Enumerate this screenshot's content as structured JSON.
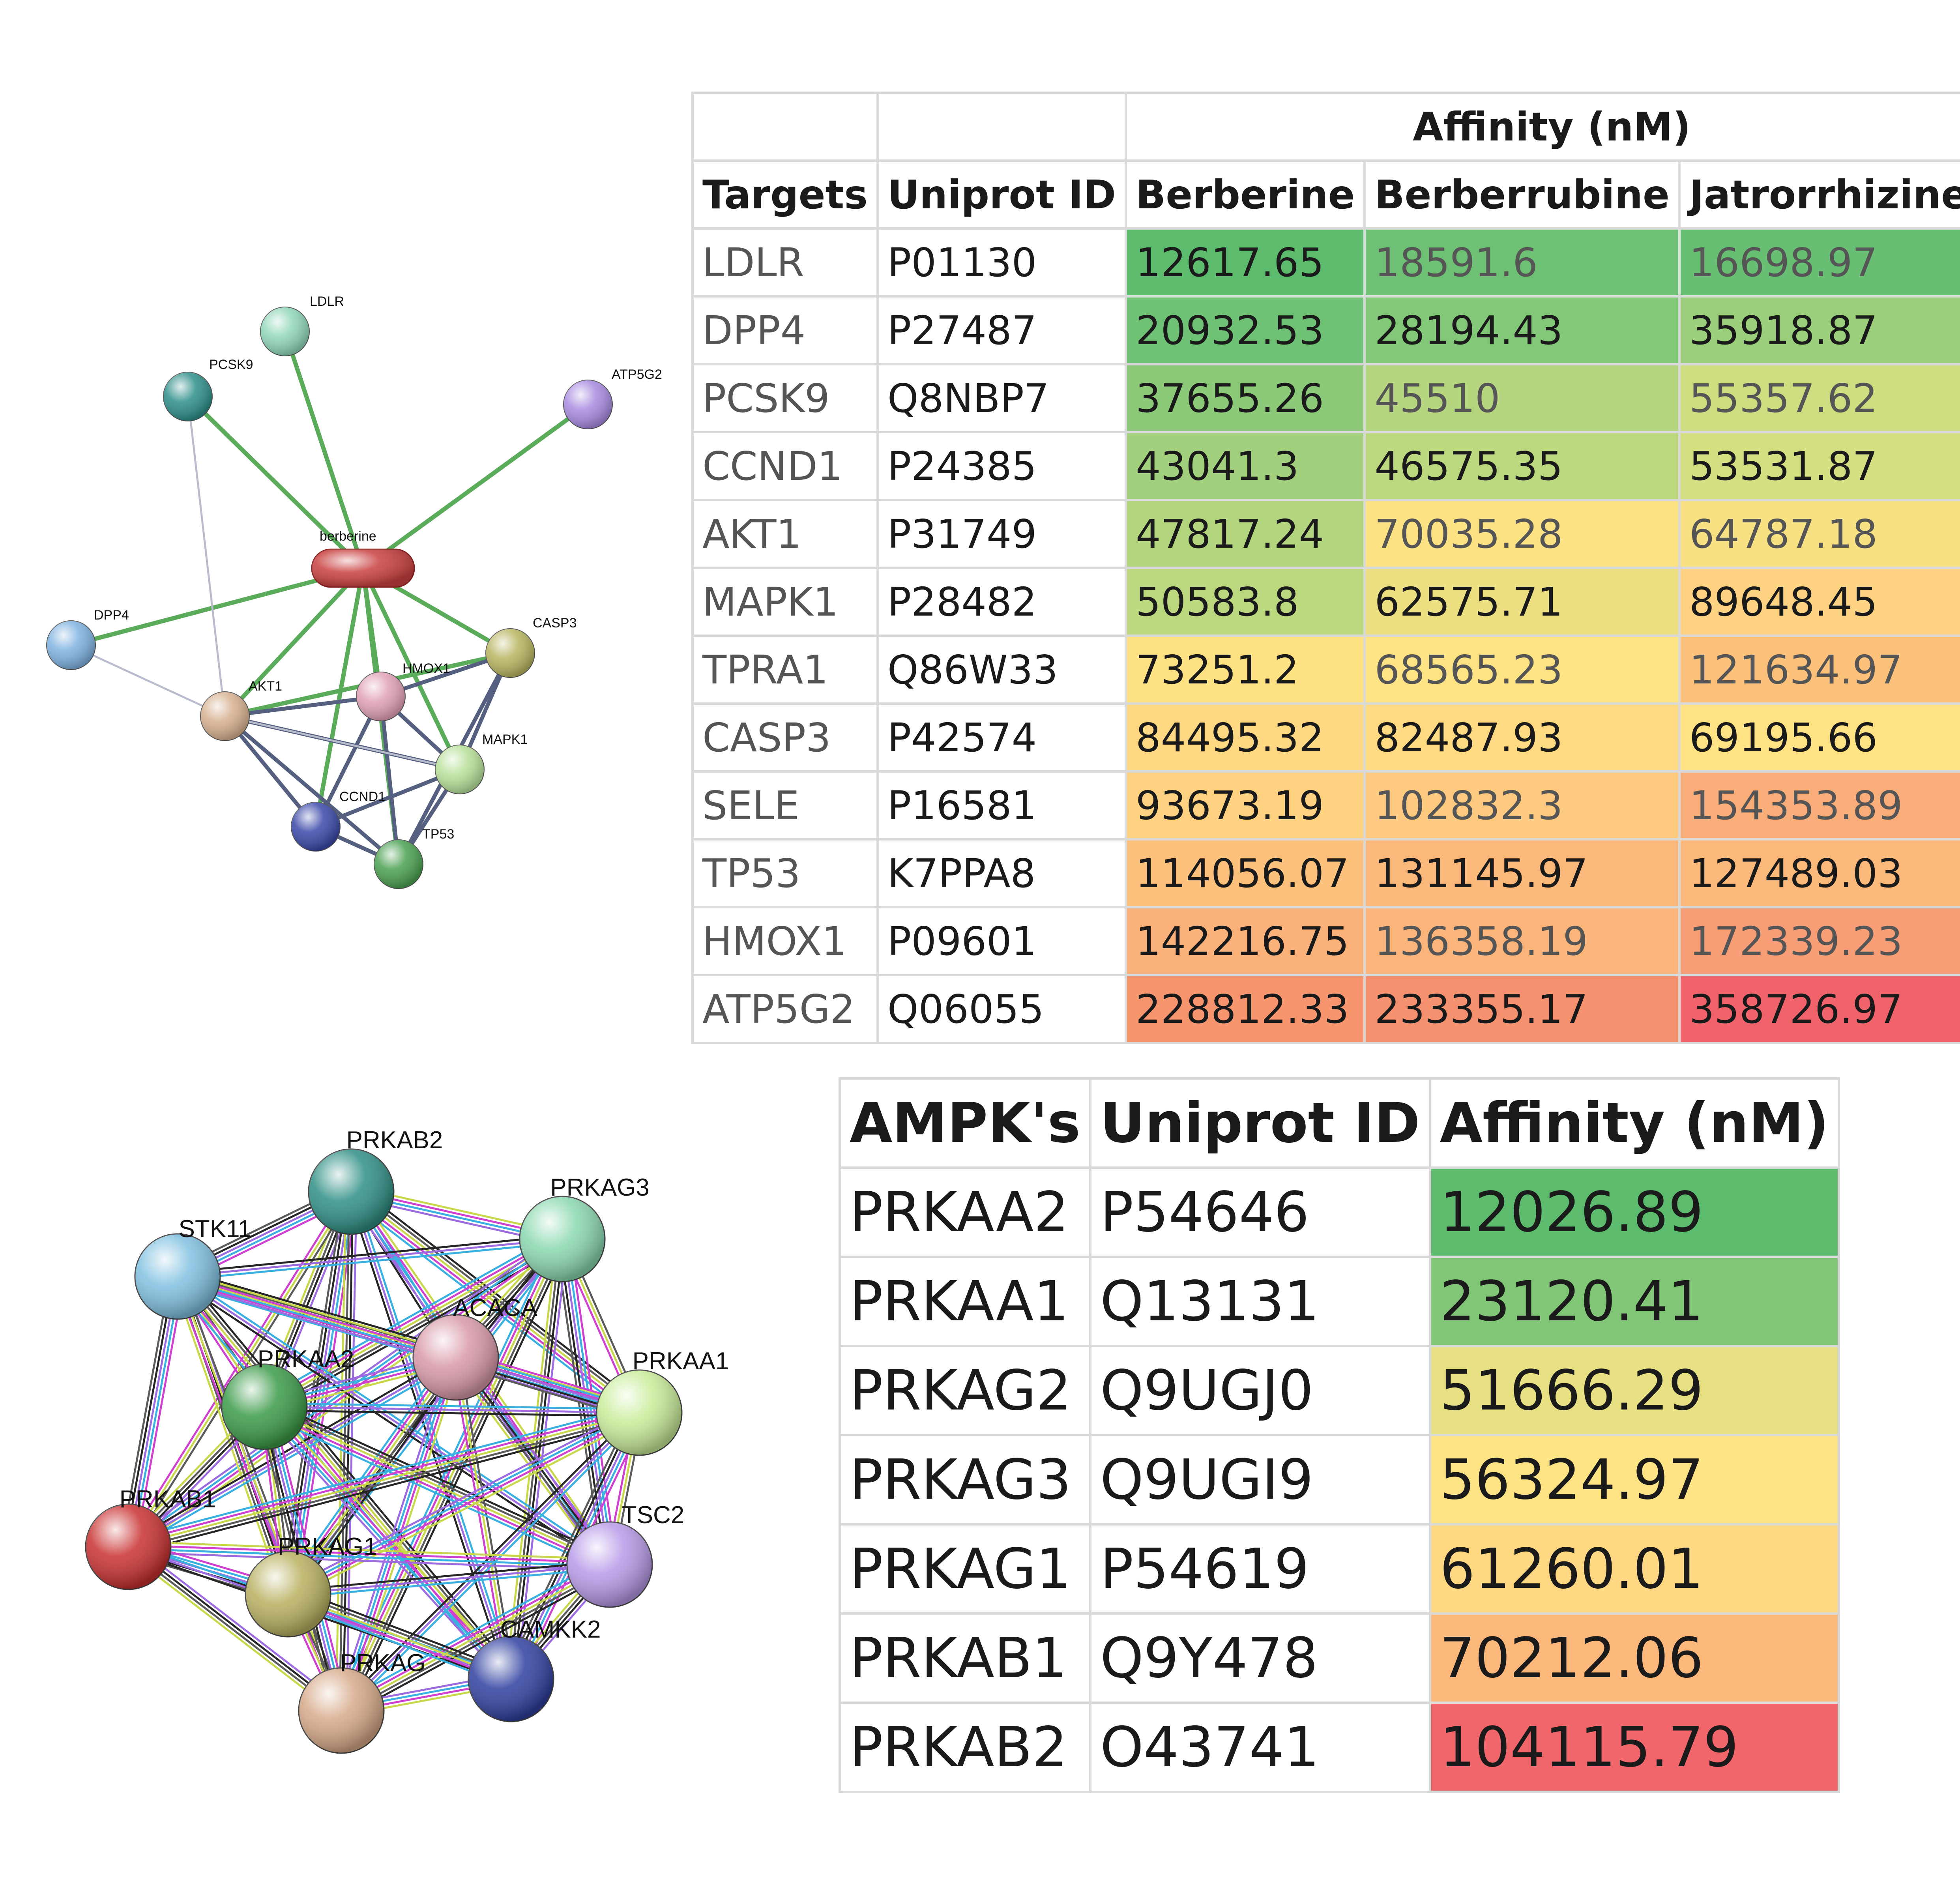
{
  "network1": {
    "nodes": [
      {
        "id": "berberine",
        "label": "berberine",
        "color": "#c94040"
      },
      {
        "id": "LDLR",
        "label": "LDLR",
        "color": "#8fd6b8"
      },
      {
        "id": "PCSK9",
        "label": "PCSK9",
        "color": "#2e8f8a"
      },
      {
        "id": "ATP5G2",
        "label": "ATP5G2",
        "color": "#a88be0"
      },
      {
        "id": "DPP4",
        "label": "DPP4",
        "color": "#7fb2e0"
      },
      {
        "id": "CASP3",
        "label": "CASP3",
        "color": "#b8b560"
      },
      {
        "id": "AKT1",
        "label": "AKT1",
        "color": "#d6b090"
      },
      {
        "id": "HMOX1",
        "label": "HMOX1",
        "color": "#e0a0b8"
      },
      {
        "id": "MAPK1",
        "label": "MAPK1",
        "color": "#b8e09a"
      },
      {
        "id": "CCND1",
        "label": "CCND1",
        "color": "#3a48a8"
      },
      {
        "id": "TP53",
        "label": "TP53",
        "color": "#4aa050"
      }
    ]
  },
  "table1": {
    "group_header": "Affinity (nM)",
    "columns": [
      "Targets",
      "Uniprot ID",
      "Berberine",
      "Berberrubine",
      "Jatrorrhizine"
    ],
    "rows": [
      {
        "target": "LDLR",
        "id": "P01130",
        "v": [
          "12617.65",
          "18591.6",
          "16698.97"
        ],
        "c": [
          "#5dbb6e",
          "#6ec074",
          "#68be72"
        ]
      },
      {
        "target": "DPP4",
        "id": "P27487",
        "v": [
          "20932.53",
          "28194.43",
          "35918.87"
        ],
        "c": [
          "#6fc175",
          "#83c879",
          "#9bcf7c"
        ]
      },
      {
        "target": "PCSK9",
        "id": "Q8NBP7",
        "v": [
          "37655.26",
          "45510",
          "55357.62"
        ],
        "c": [
          "#8cca79",
          "#b5d67e",
          "#cfdc80"
        ]
      },
      {
        "target": "CCND1",
        "id": "P24385",
        "v": [
          "43041.3",
          "46575.35",
          "53531.87"
        ],
        "c": [
          "#a2d07c",
          "#bcd87f",
          "#d5de81"
        ]
      },
      {
        "target": "AKT1",
        "id": "P31749",
        "v": [
          "47817.24",
          "70035.28",
          "64787.18"
        ],
        "c": [
          "#b2d57d",
          "#fde283",
          "#f7e183"
        ]
      },
      {
        "target": "MAPK1",
        "id": "P28482",
        "v": [
          "50583.8",
          "62575.71",
          "89648.45"
        ],
        "c": [
          "#bbd87e",
          "#ecdf82",
          "#fdd281"
        ]
      },
      {
        "target": "TPRA1",
        "id": "Q86W33",
        "v": [
          "73251.2",
          "68565.23",
          "121634.97"
        ],
        "c": [
          "#fee183",
          "#fde383",
          "#fcc27c"
        ]
      },
      {
        "target": "CASP3",
        "id": "P42574",
        "v": [
          "84495.32",
          "82487.93",
          "69195.66"
        ],
        "c": [
          "#fed882",
          "#fedb82",
          "#fee283"
        ]
      },
      {
        "target": "SELE",
        "id": "P16581",
        "v": [
          "93673.19",
          "102832.3",
          "154353.89"
        ],
        "c": [
          "#fed281",
          "#fdca7f",
          "#f9ae79"
        ]
      },
      {
        "target": "TP53",
        "id": "K7PPA8",
        "v": [
          "114056.07",
          "131145.97",
          "127489.03"
        ],
        "c": [
          "#fcc27d",
          "#fbb87b",
          "#fbba7b"
        ]
      },
      {
        "target": "HMOX1",
        "id": "P09601",
        "v": [
          "142216.75",
          "136358.19",
          "172339.23"
        ],
        "c": [
          "#fab27a",
          "#fbb57a",
          "#f89e76"
        ]
      },
      {
        "target": "ATP5G2",
        "id": "Q06055",
        "v": [
          "228812.33",
          "233355.17",
          "358726.97"
        ],
        "c": [
          "#f7956f",
          "#f6916f",
          "#f0636a"
        ]
      }
    ]
  },
  "network2": {
    "nodes": [
      {
        "id": "PRKAB2",
        "label": "PRKAB2",
        "color": "#2e8f85"
      },
      {
        "id": "PRKAG3",
        "label": "PRKAG3",
        "color": "#8ad8b0"
      },
      {
        "id": "STK11",
        "label": "STK11",
        "color": "#7fc0e0"
      },
      {
        "id": "ACACA",
        "label": "ACACA",
        "color": "#d898a8"
      },
      {
        "id": "PRKAA2",
        "label": "PRKAA2",
        "color": "#3a9a48"
      },
      {
        "id": "PRKAA1",
        "label": "PRKAA1",
        "color": "#c8ec98"
      },
      {
        "id": "PRKAB1",
        "label": "PRKAB1",
        "color": "#c93030"
      },
      {
        "id": "TSC2",
        "label": "TSC2",
        "color": "#b89ae8"
      },
      {
        "id": "PRKAG1",
        "label": "PRKAG1",
        "color": "#b8b060"
      },
      {
        "id": "CAMKK2",
        "label": "CAMKK2",
        "color": "#3040a0"
      },
      {
        "id": "PRKAG2",
        "label": "PRKAG",
        "color": "#d6a888"
      }
    ]
  },
  "table2": {
    "columns": [
      "AMPK's",
      "Uniprot ID",
      "Affinity (nM)"
    ],
    "rows": [
      {
        "name": "PRKAA2",
        "id": "P54646",
        "v": "12026.89",
        "c": "#5dbb6e"
      },
      {
        "name": "PRKAA1",
        "id": "Q13131",
        "v": "23120.41",
        "c": "#80c676"
      },
      {
        "name": "PRKAG2",
        "id": "Q9UGJ0",
        "v": "51666.29",
        "c": "#e8e184"
      },
      {
        "name": "PRKAG3",
        "id": "Q9UGI9",
        "v": "56324.97",
        "c": "#fde383"
      },
      {
        "name": "PRKAG1",
        "id": "P54619",
        "v": "61260.01",
        "c": "#fed882"
      },
      {
        "name": "PRKAB1",
        "id": "Q9Y478",
        "v": "70212.06",
        "c": "#fbb87a"
      },
      {
        "name": "PRKAB2",
        "id": "O43741",
        "v": "104115.79",
        "c": "#f0666b"
      }
    ]
  }
}
